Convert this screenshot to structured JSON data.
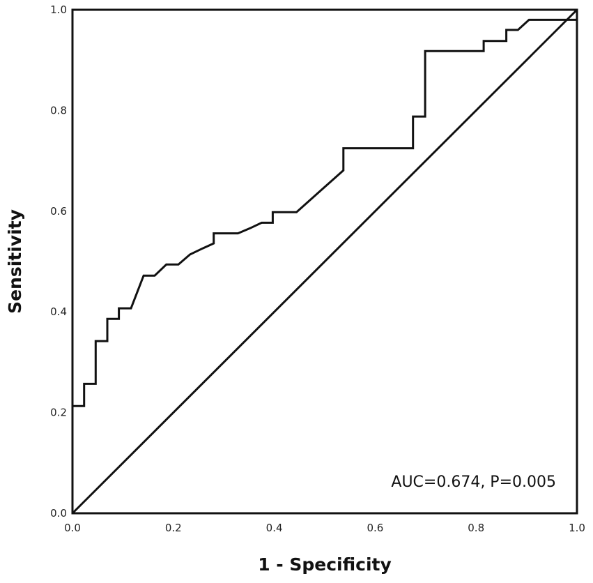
{
  "chart_data": {
    "type": "line",
    "title": "",
    "xlabel": "1 - Specificity",
    "ylabel": "Sensitivity",
    "xlim": [
      0,
      1
    ],
    "ylim": [
      0,
      1
    ],
    "xticks": [
      "0.0",
      "0.2",
      "0.4",
      "0.6",
      "0.8",
      "1.0"
    ],
    "yticks": [
      "0.0",
      "0.2",
      "0.4",
      "0.6",
      "0.8",
      "1.0"
    ],
    "grid": false,
    "annotation": "AUC=0.674, P=0.005",
    "series": [
      {
        "x": [
          0,
          0,
          0.023,
          0.023,
          0.046,
          0.046,
          0.069,
          0.069,
          0.092,
          0.092,
          0.116,
          0.141,
          0.163,
          0.186,
          0.21,
          0.233,
          0.258,
          0.28,
          0.28,
          0.328,
          0.352,
          0.375,
          0.397,
          0.397,
          0.444,
          0.491,
          0.537,
          0.537,
          0.675,
          0.675,
          0.699,
          0.699,
          0.815,
          0.815,
          0.86,
          0.86,
          0.883,
          0.905,
          0.905,
          1.0,
          1.0
        ],
        "y": [
          0,
          0.213,
          0.213,
          0.257,
          0.257,
          0.342,
          0.342,
          0.386,
          0.386,
          0.407,
          0.407,
          0.472,
          0.472,
          0.494,
          0.494,
          0.514,
          0.526,
          0.536,
          0.556,
          0.556,
          0.566,
          0.577,
          0.577,
          0.598,
          0.598,
          0.64,
          0.681,
          0.725,
          0.725,
          0.788,
          0.788,
          0.918,
          0.918,
          0.938,
          0.938,
          0.96,
          0.96,
          0.98,
          0.98,
          0.98,
          1.0
        ],
        "color": "#111111"
      },
      {
        "x": [
          0,
          1
        ],
        "y": [
          0,
          1
        ],
        "color": "#111111"
      }
    ]
  }
}
